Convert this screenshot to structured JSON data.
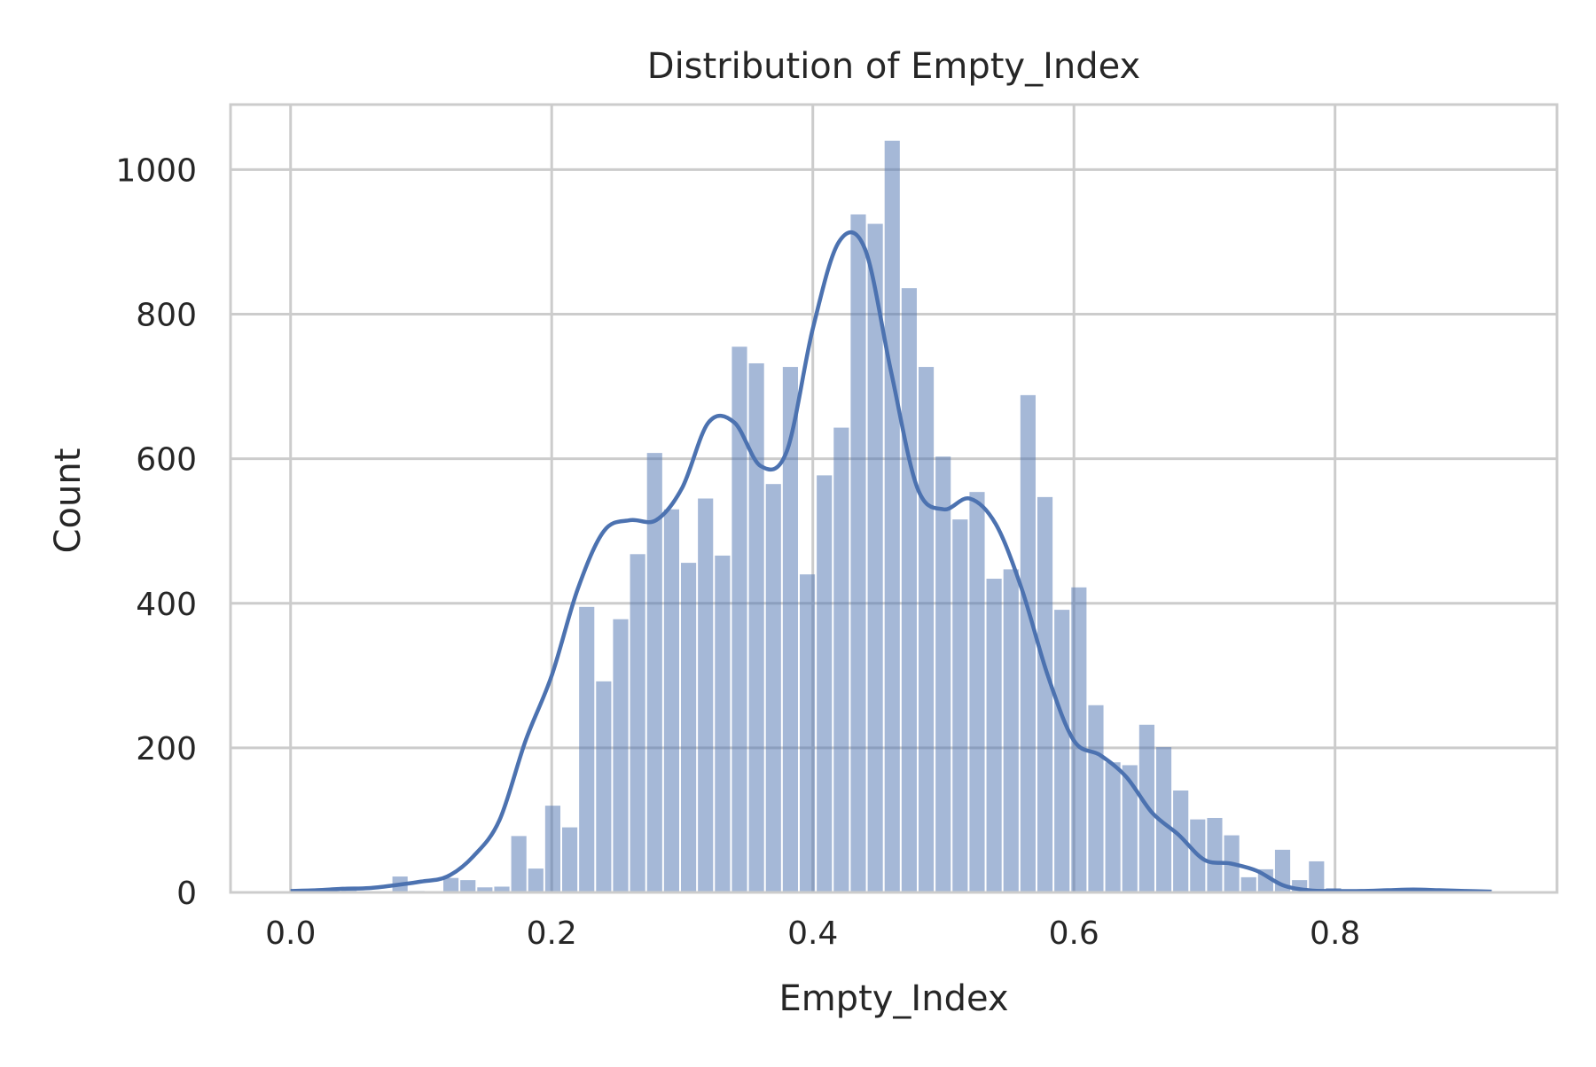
{
  "chart_data": {
    "type": "bar",
    "title": "Distribution of Empty_Index",
    "xlabel": "Empty_Index",
    "ylabel": "Count",
    "xlim": [
      -0.046,
      0.97
    ],
    "ylim": [
      0,
      1090
    ],
    "x_ticks": [
      "0.0",
      "0.2",
      "0.4",
      "0.6",
      "0.8"
    ],
    "x_tick_values": [
      0.0,
      0.2,
      0.4,
      0.6,
      0.8
    ],
    "y_ticks": [
      "0",
      "200",
      "400",
      "600",
      "800",
      "1000"
    ],
    "y_tick_values": [
      0,
      200,
      400,
      600,
      800,
      1000
    ],
    "grid": true,
    "bin_start": 0.0,
    "bin_width": 0.013,
    "values": [
      4,
      2,
      0,
      3,
      0,
      0,
      22,
      2,
      0,
      20,
      17,
      7,
      8,
      78,
      33,
      120,
      90,
      395,
      292,
      378,
      468,
      608,
      530,
      456,
      545,
      466,
      755,
      732,
      565,
      727,
      440,
      577,
      643,
      938,
      925,
      1040,
      836,
      727,
      603,
      516,
      554,
      434,
      447,
      688,
      547,
      391,
      422,
      259,
      180,
      176,
      232,
      201,
      141,
      101,
      103,
      79,
      21,
      32,
      59,
      17,
      43,
      6,
      3,
      0,
      0,
      0,
      0,
      0,
      2,
      0,
      0,
      0,
      0,
      0,
      0,
      0,
      0,
      0
    ],
    "kde": {
      "x": [
        0.0,
        0.02,
        0.04,
        0.06,
        0.08,
        0.1,
        0.12,
        0.14,
        0.16,
        0.18,
        0.2,
        0.22,
        0.24,
        0.26,
        0.28,
        0.3,
        0.32,
        0.34,
        0.36,
        0.38,
        0.4,
        0.42,
        0.44,
        0.46,
        0.48,
        0.5,
        0.52,
        0.54,
        0.56,
        0.58,
        0.6,
        0.62,
        0.64,
        0.66,
        0.68,
        0.7,
        0.72,
        0.74,
        0.76,
        0.78,
        0.8,
        0.82,
        0.84,
        0.86,
        0.88,
        0.9,
        0.92
      ],
      "y": [
        2,
        3,
        5,
        6,
        10,
        15,
        22,
        50,
        100,
        210,
        300,
        420,
        500,
        515,
        515,
        560,
        650,
        650,
        590,
        610,
        780,
        900,
        890,
        720,
        560,
        530,
        545,
        510,
        420,
        300,
        210,
        190,
        160,
        110,
        80,
        45,
        40,
        30,
        10,
        3,
        2,
        2,
        3,
        4,
        3,
        2,
        1
      ]
    },
    "colors": {
      "bar": "#4c72b0",
      "kde_line": "#4c72b0",
      "grid": "#cccccc",
      "spine": "#cccccc",
      "text": "#262626"
    }
  }
}
